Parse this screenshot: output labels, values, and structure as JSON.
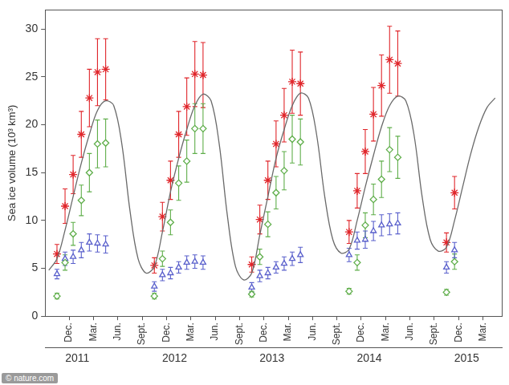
{
  "chart_data": {
    "type": "scatter",
    "y_label": "Sea ice volume (10³ km³)",
    "credit": "© nature.com",
    "grid": false,
    "xlim": [
      2010.67,
      2015.36
    ],
    "xticks": [
      {
        "value": 2010.917,
        "label": "Dec."
      },
      {
        "value": 2011.167,
        "label": "Mar."
      },
      {
        "value": 2011.417,
        "label": "Jun."
      },
      {
        "value": 2011.667,
        "label": "Sept."
      },
      {
        "value": 2011.917,
        "label": "Dec."
      },
      {
        "value": 2012.167,
        "label": "Mar."
      },
      {
        "value": 2012.417,
        "label": "Jun."
      },
      {
        "value": 2012.667,
        "label": "Sept."
      },
      {
        "value": 2012.917,
        "label": "Dec."
      },
      {
        "value": 2013.167,
        "label": "Mar."
      },
      {
        "value": 2013.417,
        "label": "Jun."
      },
      {
        "value": 2013.667,
        "label": "Sept."
      },
      {
        "value": 2013.917,
        "label": "Dec."
      },
      {
        "value": 2014.167,
        "label": "Mar."
      },
      {
        "value": 2014.417,
        "label": "Jun."
      },
      {
        "value": 2014.667,
        "label": "Sept."
      },
      {
        "value": 2014.917,
        "label": "Dec."
      },
      {
        "value": 2015.167,
        "label": "Mar."
      }
    ],
    "x2lim": [
      2010.67,
      2015.36
    ],
    "x2ticks": [
      2011,
      2012,
      2013,
      2014,
      2015
    ],
    "ylim": [
      0,
      32
    ],
    "yticks": [
      0,
      5,
      10,
      15,
      20,
      25,
      30
    ],
    "x": [
      2010.792,
      2010.875,
      2010.958,
      2011.042,
      2011.125,
      2011.208,
      2011.292,
      2011.792,
      2011.875,
      2011.958,
      2012.042,
      2012.125,
      2012.208,
      2012.292,
      2012.792,
      2012.875,
      2012.958,
      2013.042,
      2013.125,
      2013.208,
      2013.292,
      2013.792,
      2013.875,
      2013.958,
      2014.042,
      2014.125,
      2014.208,
      2014.292,
      2014.792,
      2014.875
    ],
    "series": [
      {
        "type": "line",
        "color": "#6a6a6a",
        "marker": "none",
        "line_style": "solid",
        "x": [
          2010.708,
          2010.792,
          2010.875,
          2010.958,
          2011.042,
          2011.125,
          2011.208,
          2011.292,
          2011.375,
          2011.458,
          2011.542,
          2011.625,
          2011.708,
          2011.792,
          2011.875,
          2011.958,
          2012.042,
          2012.125,
          2012.208,
          2012.292,
          2012.375,
          2012.458,
          2012.542,
          2012.625,
          2012.708,
          2012.792,
          2012.875,
          2012.958,
          2013.042,
          2013.125,
          2013.208,
          2013.292,
          2013.375,
          2013.458,
          2013.542,
          2013.625,
          2013.708,
          2013.792,
          2013.875,
          2013.958,
          2014.042,
          2014.125,
          2014.208,
          2014.292,
          2014.375,
          2014.458,
          2014.542,
          2014.625,
          2014.708,
          2014.792,
          2014.875,
          2014.958,
          2015.042,
          2015.125,
          2015.208,
          2015.292
        ],
        "values": [
          4.8,
          6.0,
          9.0,
          12.5,
          16.0,
          19.0,
          21.5,
          22.5,
          22.0,
          18.0,
          11.0,
          6.0,
          4.5,
          5.2,
          8.8,
          13.0,
          16.5,
          19.5,
          22.0,
          23.2,
          22.5,
          18.0,
          10.5,
          5.2,
          3.8,
          4.5,
          8.5,
          12.5,
          16.5,
          19.5,
          22.0,
          23.3,
          22.8,
          19.0,
          12.5,
          8.0,
          6.6,
          7.0,
          10.0,
          13.5,
          16.8,
          19.8,
          22.0,
          23.0,
          22.5,
          19.0,
          12.5,
          8.0,
          6.8,
          7.2,
          10.0,
          13.5,
          17.0,
          19.8,
          21.8,
          22.8
        ]
      },
      {
        "type": "scatter",
        "color": "#e0262b",
        "marker": "star",
        "values": [
          6.5,
          11.5,
          14.8,
          19.0,
          22.8,
          25.5,
          25.8,
          5.3,
          10.4,
          14.2,
          19.0,
          21.9,
          25.3,
          25.2,
          5.4,
          10.1,
          14.2,
          18.0,
          21.0,
          24.5,
          24.3,
          8.8,
          13.1,
          17.2,
          21.1,
          24.1,
          26.8,
          26.4,
          7.7,
          12.9
        ],
        "errors": [
          1.0,
          1.8,
          2.0,
          2.4,
          3.0,
          3.5,
          3.2,
          0.8,
          1.5,
          2.0,
          2.4,
          3.0,
          3.4,
          3.4,
          0.8,
          1.5,
          2.0,
          2.4,
          2.8,
          3.3,
          3.3,
          1.2,
          1.8,
          2.3,
          2.8,
          3.2,
          3.5,
          3.4,
          1.0,
          1.7
        ]
      },
      {
        "type": "scatter",
        "color": "#5fae4a",
        "marker": "diamond",
        "values": [
          2.1,
          5.6,
          8.6,
          12.1,
          15.0,
          18.0,
          18.1,
          2.1,
          6.0,
          9.8,
          13.9,
          16.2,
          19.6,
          19.6,
          2.3,
          6.2,
          9.6,
          12.9,
          15.2,
          18.5,
          18.2,
          2.6,
          5.6,
          9.5,
          12.2,
          14.3,
          17.4,
          16.6,
          2.5,
          5.7
        ],
        "errors": [
          0.3,
          0.8,
          1.2,
          1.6,
          2.0,
          2.5,
          2.5,
          0.3,
          0.8,
          1.3,
          1.8,
          2.2,
          2.6,
          2.6,
          0.3,
          0.8,
          1.3,
          1.7,
          2.0,
          2.5,
          2.4,
          0.3,
          0.8,
          1.3,
          1.6,
          1.9,
          2.3,
          2.2,
          0.3,
          0.8
        ]
      },
      {
        "type": "scatter",
        "color": "#5a60cc",
        "marker": "triangle",
        "values": [
          4.4,
          6.0,
          6.2,
          6.9,
          7.7,
          7.6,
          7.5,
          3.1,
          4.3,
          4.5,
          5.1,
          5.6,
          5.7,
          5.6,
          3.0,
          4.2,
          4.5,
          5.1,
          5.5,
          6.0,
          6.4,
          6.4,
          7.9,
          8.0,
          8.9,
          9.5,
          9.6,
          9.7,
          5.1,
          6.9
        ],
        "errors": [
          0.5,
          0.7,
          0.7,
          0.8,
          0.9,
          0.9,
          0.9,
          0.5,
          0.6,
          0.6,
          0.6,
          0.7,
          0.7,
          0.7,
          0.5,
          0.6,
          0.6,
          0.6,
          0.7,
          0.7,
          0.8,
          0.7,
          0.9,
          0.9,
          1.0,
          1.1,
          1.1,
          1.1,
          0.6,
          0.8
        ]
      }
    ]
  }
}
